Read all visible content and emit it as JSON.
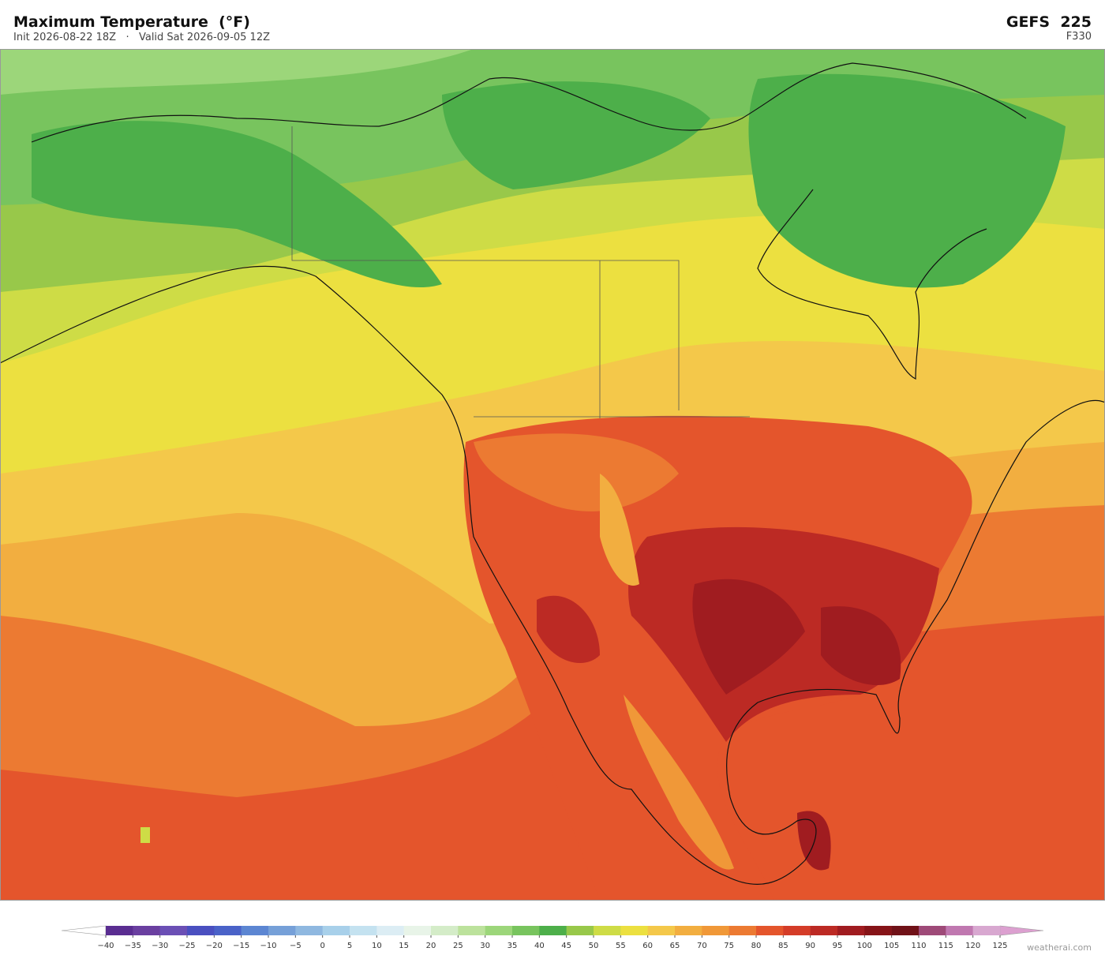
{
  "header": {
    "title": "Maximum Temperature  (°F)",
    "subtitle": "Init 2026-08-22 18Z   ·   Valid Sat 2026-09-05 12Z",
    "model": "GEFS  225",
    "forecast_hour": "F330"
  },
  "colorbar": {
    "ticks": [
      {
        "value": -40,
        "label": "−40"
      },
      {
        "value": -35,
        "label": "−35"
      },
      {
        "value": -30,
        "label": "−30"
      },
      {
        "value": -25,
        "label": "−25"
      },
      {
        "value": -20,
        "label": "−20"
      },
      {
        "value": -15,
        "label": "−15"
      },
      {
        "value": -10,
        "label": "−10"
      },
      {
        "value": -5,
        "label": "−5"
      },
      0,
      5,
      10,
      15,
      20,
      25,
      30,
      35,
      40,
      45,
      50,
      55,
      60,
      65,
      70,
      75,
      80,
      85,
      90,
      95,
      100,
      105,
      110,
      115,
      120,
      125
    ],
    "colors": [
      "#5a2d91",
      "#6a3fa0",
      "#6b4fb5",
      "#4a4fc0",
      "#4a62c8",
      "#5c86d2",
      "#76a0d8",
      "#8fb8e0",
      "#a8d0ea",
      "#c4e2f0",
      "#dcedf4",
      "#e8f4e8",
      "#d4ecc8",
      "#bce29c",
      "#9cd67a",
      "#78c45e",
      "#4daf4a",
      "#98c84a",
      "#cedc46",
      "#ece040",
      "#f4c84a",
      "#f2ae40",
      "#f09838",
      "#ec7a32",
      "#e4552c",
      "#d43c28",
      "#bc2a24",
      "#a01c20",
      "#861418",
      "#701218",
      "#9e4a78",
      "#c078b0",
      "#d8a8d0"
    ],
    "under_color": "#ffffff",
    "over_color": "#dca0d0"
  },
  "footer": {
    "watermark": "weatherai.com"
  }
}
